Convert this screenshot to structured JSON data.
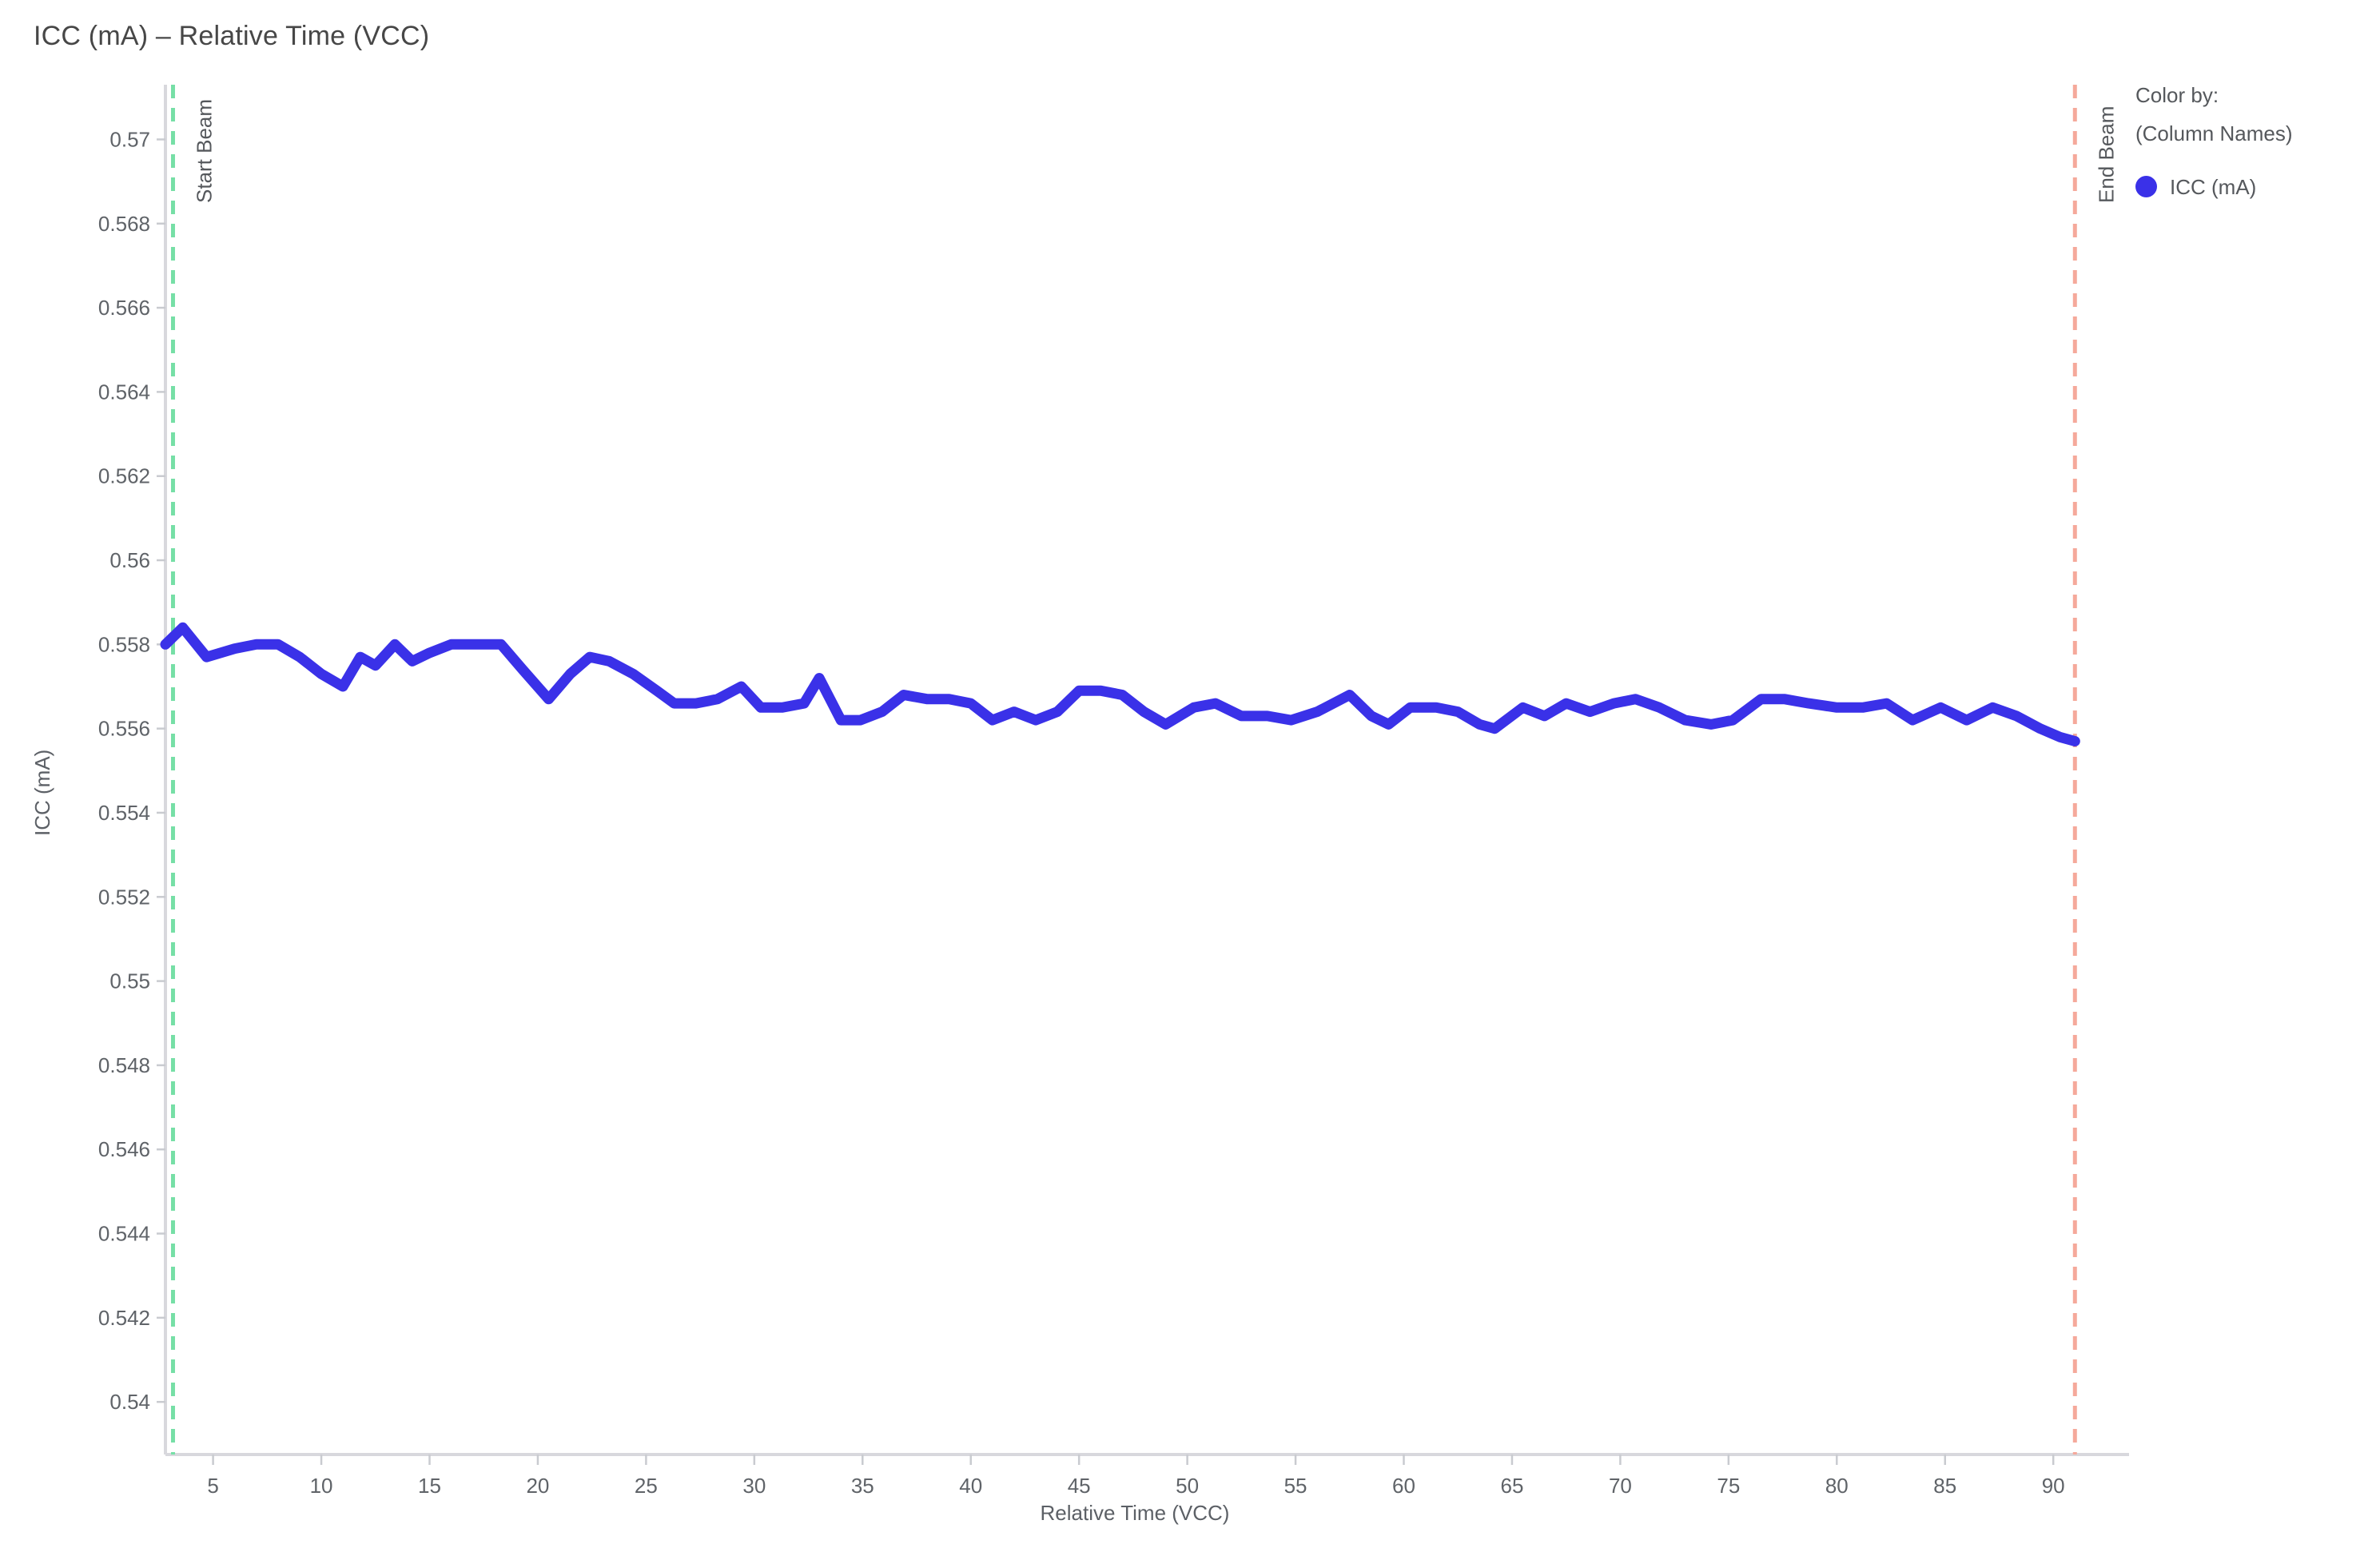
{
  "header": {
    "title": "ICC (mA) – Relative Time (VCC)"
  },
  "legend": {
    "title": "Color by:",
    "subtitle": "(Column Names)",
    "items": [
      {
        "label": "ICC (mA)",
        "color": "#3A31E8"
      }
    ]
  },
  "colors": {
    "series_blue": "#3A31E8",
    "start_beam_green": "#76DFA6",
    "end_beam_salmon": "#F5A99B",
    "axis_line": "#D8D8DD",
    "tick_mark": "#C9CBD0",
    "tick_text": "#5F6368",
    "axis_title_text": "#5C6066",
    "annotation_text": "#55585C"
  },
  "chart_data": {
    "type": "line",
    "title": "ICC (mA) – Relative Time (VCC)",
    "xlabel": "Relative Time (VCC)",
    "ylabel": "ICC (mA)",
    "xlim": [
      2.8,
      93.5
    ],
    "ylim": [
      0.53875,
      0.5713
    ],
    "grid": false,
    "legend_position": "top-right",
    "x_ticks": [
      5,
      10,
      15,
      20,
      25,
      30,
      35,
      40,
      45,
      50,
      55,
      60,
      65,
      70,
      75,
      80,
      85,
      90
    ],
    "y_ticks": [
      0.57,
      0.568,
      0.566,
      0.564,
      0.562,
      0.56,
      0.558,
      0.556,
      0.554,
      0.552,
      0.55,
      0.548,
      0.546,
      0.544,
      0.542,
      0.54
    ],
    "y_tick_labels": [
      "0.57",
      "0.568",
      "0.566",
      "0.564",
      "0.562",
      "0.56",
      "0.558",
      "0.556",
      "0.554",
      "0.552",
      "0.55",
      "0.548",
      "0.546",
      "0.544",
      "0.542",
      "0.54"
    ],
    "series": [
      {
        "name": "ICC (mA)",
        "color": "#3A31E8",
        "x": [
          2.8,
          3.6,
          4.7,
          6.0,
          7.0,
          8.0,
          9.0,
          10.0,
          11.0,
          11.8,
          12.5,
          13.4,
          14.2,
          15.0,
          16.0,
          17.2,
          18.3,
          19.3,
          20.5,
          21.5,
          22.4,
          23.3,
          24.4,
          25.5,
          26.3,
          27.3,
          28.3,
          29.4,
          30.3,
          31.3,
          32.3,
          33.0,
          34.0,
          34.9,
          35.9,
          36.9,
          38.0,
          39.0,
          40.0,
          41.0,
          42.0,
          43.0,
          44.0,
          45.0,
          46.0,
          47.0,
          48.0,
          49.0,
          50.3,
          51.3,
          52.5,
          53.7,
          54.8,
          56.0,
          57.5,
          58.5,
          59.3,
          60.3,
          61.5,
          62.5,
          63.5,
          64.2,
          65.5,
          66.5,
          67.5,
          68.6,
          69.7,
          70.7,
          71.8,
          73.0,
          74.2,
          75.2,
          76.5,
          77.6,
          78.7,
          80.0,
          81.2,
          82.3,
          83.5,
          84.8,
          86.0,
          87.2,
          88.3,
          89.4,
          90.3,
          91.0
        ],
        "y": [
          0.558,
          0.5584,
          0.5577,
          0.5579,
          0.558,
          0.558,
          0.5577,
          0.5573,
          0.557,
          0.5577,
          0.5575,
          0.558,
          0.5576,
          0.5578,
          0.558,
          0.558,
          0.558,
          0.5574,
          0.5567,
          0.5573,
          0.5577,
          0.5576,
          0.5573,
          0.5569,
          0.5566,
          0.5566,
          0.5567,
          0.557,
          0.5565,
          0.5565,
          0.5566,
          0.5572,
          0.5562,
          0.5562,
          0.5564,
          0.5568,
          0.5567,
          0.5567,
          0.5566,
          0.5562,
          0.5564,
          0.5562,
          0.5564,
          0.5569,
          0.5569,
          0.5568,
          0.5564,
          0.5561,
          0.5565,
          0.5566,
          0.5563,
          0.5563,
          0.5562,
          0.5564,
          0.5568,
          0.5563,
          0.5561,
          0.5565,
          0.5565,
          0.5564,
          0.5561,
          0.556,
          0.5565,
          0.5563,
          0.5566,
          0.5564,
          0.5566,
          0.5567,
          0.5565,
          0.5562,
          0.5561,
          0.5562,
          0.5567,
          0.5567,
          0.5566,
          0.5565,
          0.5565,
          0.5566,
          0.5562,
          0.5565,
          0.5562,
          0.5565,
          0.5563,
          0.556,
          0.5558,
          0.5557
        ]
      }
    ],
    "annotations": [
      {
        "label": "Start Beam",
        "x": 3.15,
        "color": "#76DFA6",
        "style": "dashed"
      },
      {
        "label": "End Beam",
        "x": 91.0,
        "color": "#F5A99B",
        "style": "dashed"
      }
    ]
  }
}
